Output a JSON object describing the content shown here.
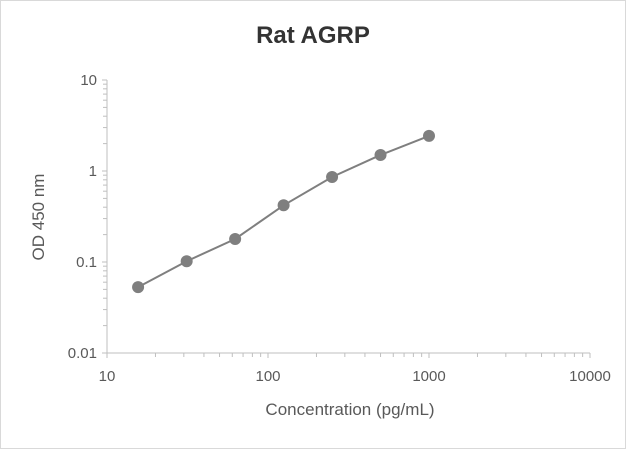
{
  "chart_data": {
    "type": "scatter",
    "title": "Rat AGRP",
    "xlabel": "Concentration (pg/mL)",
    "ylabel": "OD 450 nm",
    "xscale": "log",
    "yscale": "log",
    "xlim": [
      10,
      10000
    ],
    "ylim": [
      0.01,
      10
    ],
    "xticks": [
      "10",
      "100",
      "1000",
      "10000"
    ],
    "yticks": [
      "0.01",
      "0.1",
      "1",
      "10"
    ],
    "grid": false,
    "legend": "none",
    "series": [
      {
        "x": [
          15.6,
          31.25,
          62.5,
          125,
          250,
          500,
          1000
        ],
        "y": [
          0.053,
          0.102,
          0.179,
          0.42,
          0.86,
          1.5,
          2.43
        ],
        "color": "#7f7f7f",
        "line": true
      }
    ]
  }
}
